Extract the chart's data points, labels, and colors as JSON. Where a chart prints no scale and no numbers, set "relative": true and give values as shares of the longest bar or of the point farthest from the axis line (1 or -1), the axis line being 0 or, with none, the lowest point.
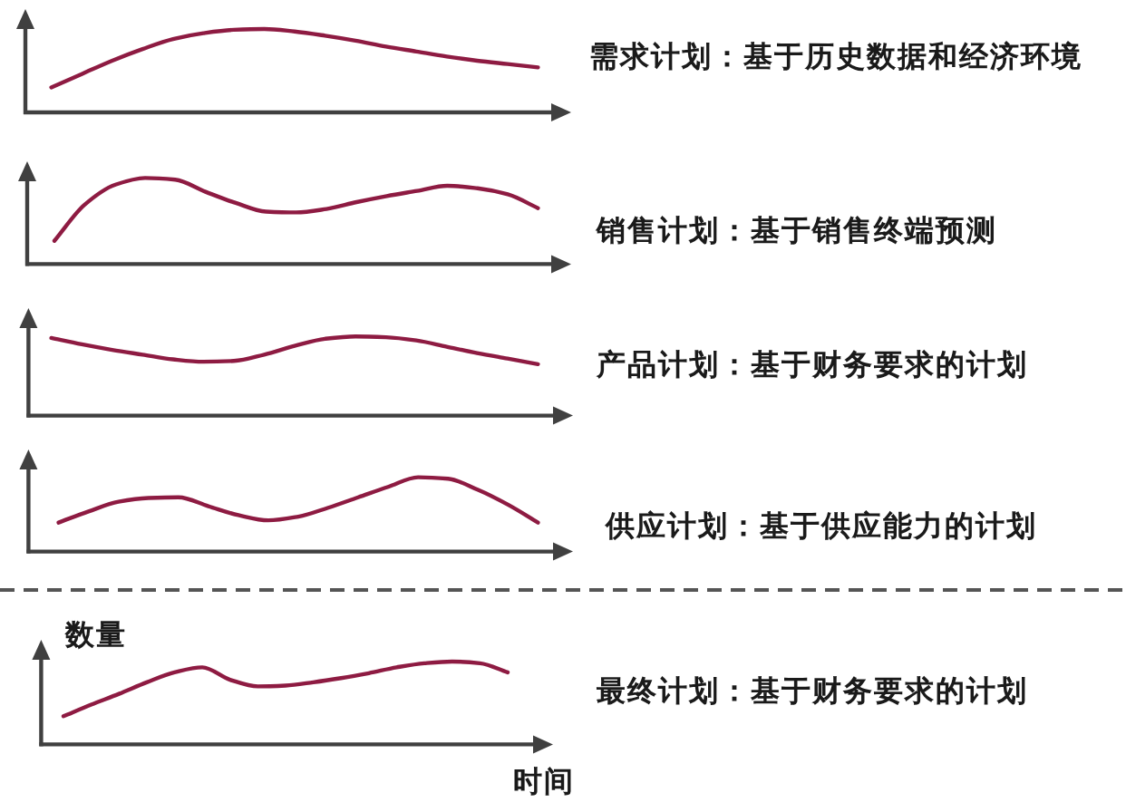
{
  "chart_data": [
    {
      "type": "line",
      "annotations": [
        "需求计划：基于历史数据和经济环境"
      ],
      "relative": true,
      "categories": [
        null,
        null,
        null,
        null,
        null,
        null,
        null,
        null,
        null,
        null,
        null,
        null,
        null,
        null,
        null,
        null,
        null
      ],
      "series": [
        {
          "color": "#8e1b42",
          "values": [
            0.3,
            0.46,
            0.62,
            0.76,
            0.88,
            0.95,
            0.99,
            1,
            0.97,
            0.92,
            0.86,
            0.79,
            0.73,
            0.67,
            0.62,
            0.58,
            0.54
          ]
        }
      ]
    },
    {
      "type": "line",
      "annotations": [
        "销售计划：基于销售终端预测"
      ],
      "relative": true,
      "categories": [
        null,
        null,
        null,
        null,
        null,
        null,
        null,
        null,
        null,
        null,
        null,
        null,
        null,
        null,
        null,
        null,
        null
      ],
      "series": [
        {
          "color": "#8e1b42",
          "values": [
            0.27,
            0.69,
            0.92,
            1,
            0.98,
            0.84,
            0.71,
            0.61,
            0.6,
            0.64,
            0.72,
            0.79,
            0.85,
            0.91,
            0.88,
            0.81,
            0.65
          ]
        }
      ]
    },
    {
      "type": "line",
      "annotations": [
        "产品计划：基于财务要求的计划"
      ],
      "relative": true,
      "categories": [
        null,
        null,
        null,
        null,
        null,
        null,
        null,
        null,
        null,
        null,
        null,
        null,
        null,
        null,
        null,
        null,
        null
      ],
      "series": [
        {
          "color": "#8e1b42",
          "values": [
            0.98,
            0.9,
            0.83,
            0.77,
            0.71,
            0.68,
            0.69,
            0.77,
            0.88,
            0.97,
            1,
            0.99,
            0.95,
            0.87,
            0.79,
            0.72,
            0.65
          ]
        }
      ]
    },
    {
      "type": "line",
      "annotations": [
        "供应计划：基于供应能力的计划"
      ],
      "relative": true,
      "categories": [
        null,
        null,
        null,
        null,
        null,
        null,
        null,
        null,
        null,
        null,
        null,
        null,
        null,
        null,
        null,
        null,
        null
      ],
      "series": [
        {
          "color": "#8e1b42",
          "values": [
            0.39,
            0.54,
            0.67,
            0.72,
            0.73,
            0.61,
            0.49,
            0.42,
            0.47,
            0.59,
            0.73,
            0.87,
            1,
            0.98,
            0.83,
            0.63,
            0.39
          ]
        }
      ]
    },
    {
      "type": "line",
      "annotations": [
        "最终计划：基于财务要求的计划"
      ],
      "xlabel": "时间",
      "ylabel": "数量",
      "relative": true,
      "categories": [
        null,
        null,
        null,
        null,
        null,
        null,
        null,
        null,
        null,
        null,
        null,
        null,
        null,
        null,
        null,
        null,
        null
      ],
      "series": [
        {
          "color": "#8e1b42",
          "values": [
            0.34,
            0.48,
            0.61,
            0.75,
            0.87,
            0.93,
            0.78,
            0.7,
            0.71,
            0.75,
            0.8,
            0.86,
            0.93,
            0.98,
            1,
            0.98,
            0.87
          ]
        }
      ]
    }
  ]
}
